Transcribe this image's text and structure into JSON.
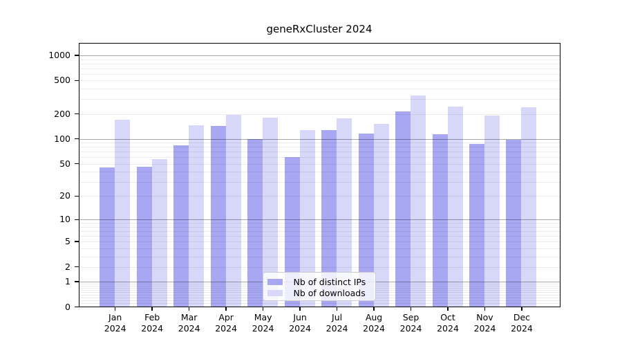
{
  "chart_data": {
    "type": "bar",
    "title": "geneRxCluster 2024",
    "categories": [
      "Jan 2024",
      "Feb 2024",
      "Mar 2024",
      "Apr 2024",
      "May 2024",
      "Jun 2024",
      "Jul 2024",
      "Aug 2024",
      "Sep 2024",
      "Oct 2024",
      "Nov 2024",
      "Dec 2024"
    ],
    "series": [
      {
        "name": "Nb of distinct IPs",
        "color": "#a8a8f2",
        "values": [
          45,
          46,
          84,
          142,
          100,
          60,
          128,
          116,
          215,
          114,
          87,
          97
        ]
      },
      {
        "name": "Nb of downloads",
        "color": "#d7d7f9",
        "values": [
          171,
          57,
          145,
          193,
          180,
          127,
          177,
          151,
          330,
          244,
          189,
          241
        ]
      }
    ],
    "xlabel": "",
    "ylabel": "",
    "y_ticks": [
      0,
      1,
      2,
      5,
      10,
      20,
      50,
      100,
      200,
      500,
      1000
    ],
    "y_scale": "log10(1+v)",
    "ylim": [
      0,
      1400
    ],
    "grid": true,
    "legend_position": "inside-bottom-center",
    "grid_major_at": [
      1,
      10,
      100,
      1000
    ]
  }
}
